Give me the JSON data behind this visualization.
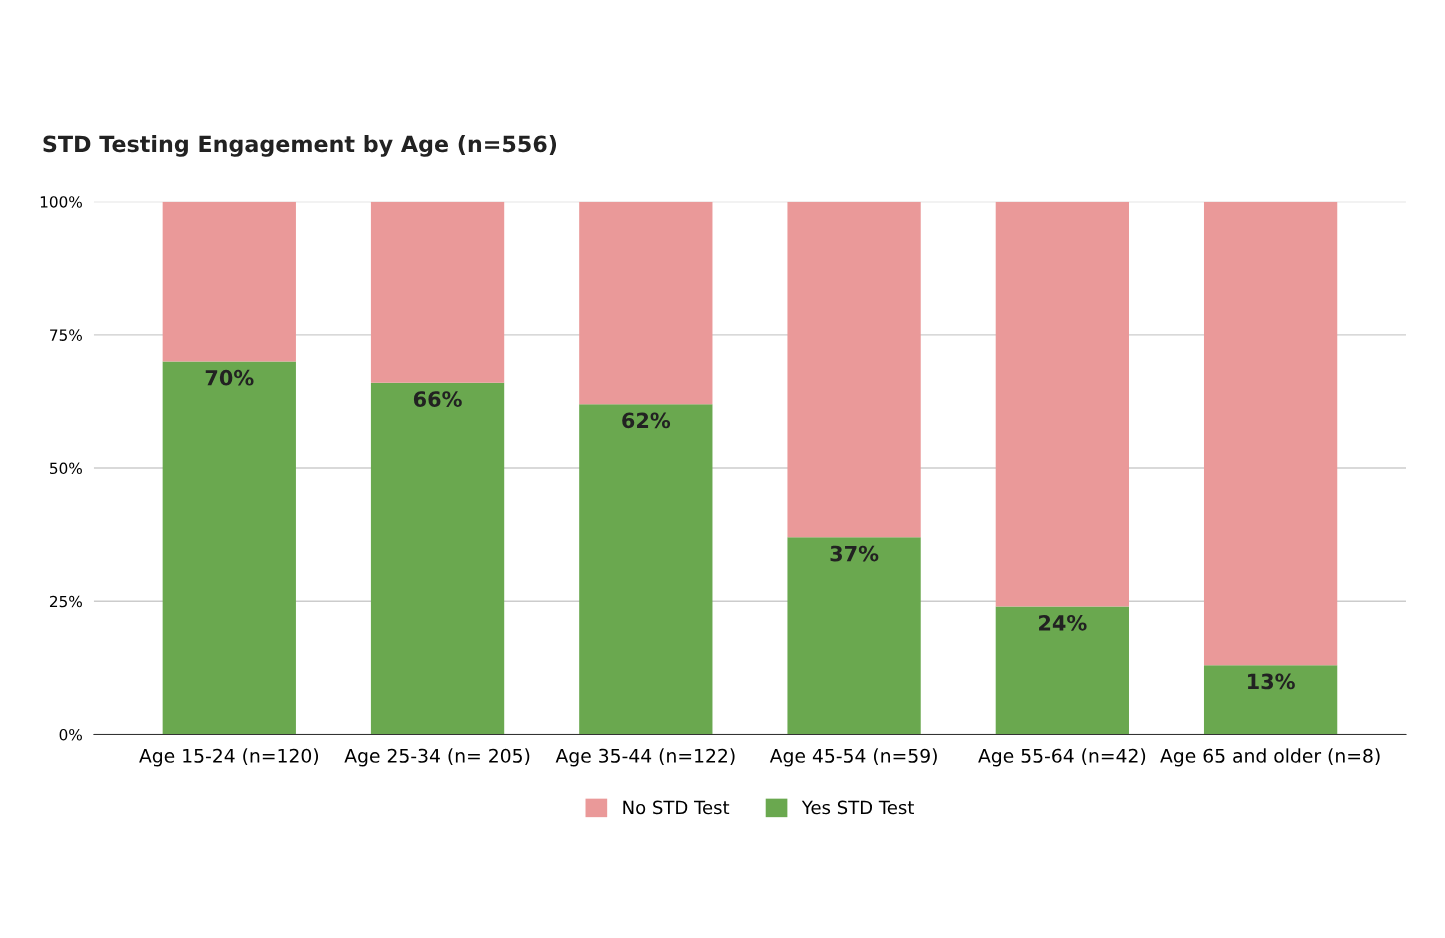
{
  "chart_data": {
    "type": "bar",
    "title": "STD Testing Engagement by Age (n=556)",
    "categories": [
      "Age 15-24 (n=120)",
      "Age 25-34 (n= 205)",
      "Age 35-44 (n=122)",
      "Age 45-54 (n=59)",
      "Age 55-64 (n=42)",
      "Age 65 and older (n=8)"
    ],
    "stacked": true,
    "series": [
      {
        "name": "Yes STD Test",
        "color": "#6aa84f",
        "values": [
          70,
          66,
          62,
          37,
          24,
          13
        ],
        "value_labels": [
          "70%",
          "66%",
          "62%",
          "37%",
          "24%",
          "13%"
        ]
      },
      {
        "name": "No STD Test",
        "color": "#ea9999",
        "values": [
          30,
          34,
          38,
          63,
          76,
          87
        ]
      }
    ],
    "ylim": [
      0,
      100
    ],
    "yticks": [
      {
        "value": 0,
        "label": "0%"
      },
      {
        "value": 25,
        "label": "25%"
      },
      {
        "value": 50,
        "label": "50%"
      },
      {
        "value": 75,
        "label": "75%"
      },
      {
        "value": 100,
        "label": "100%"
      }
    ],
    "grid": "y",
    "legend": "bottom"
  }
}
